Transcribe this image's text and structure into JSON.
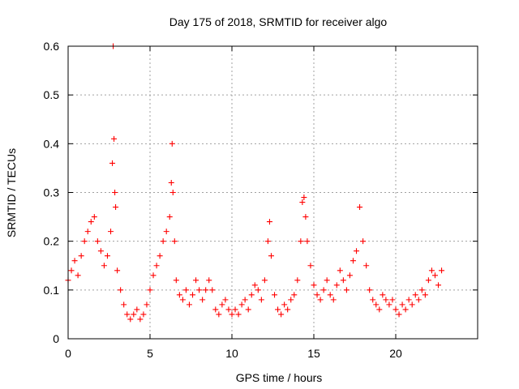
{
  "chart_data": {
    "type": "scatter",
    "title": "Day 175 of 2018, SRMTID for receiver algo",
    "xlabel": "GPS time / hours",
    "ylabel": "SRMTID / TECUs",
    "xlim": [
      0,
      25
    ],
    "ylim": [
      0,
      0.6
    ],
    "xticks": [
      0,
      5,
      10,
      15,
      20
    ],
    "xtick_labels": [
      "0",
      "5",
      "10",
      "15",
      "20"
    ],
    "yticks": [
      0,
      0.1,
      0.2,
      0.3,
      0.4,
      0.5,
      0.6
    ],
    "ytick_labels": [
      "0",
      "0.1",
      "0.2",
      "0.3",
      "0.4",
      "0.5",
      "0.6"
    ],
    "grid": true,
    "marker": "+",
    "point_color": "#ff0000",
    "series": [
      {
        "name": "SRMTID",
        "x": [
          0.0,
          0.2,
          0.4,
          0.6,
          0.8,
          1.0,
          1.2,
          1.4,
          1.6,
          1.8,
          2.0,
          2.2,
          2.4,
          2.6,
          2.7,
          2.75,
          2.8,
          2.85,
          2.9,
          3.0,
          3.2,
          3.4,
          3.6,
          3.8,
          4.0,
          4.2,
          4.4,
          4.6,
          4.8,
          5.0,
          5.2,
          5.4,
          5.6,
          5.8,
          6.0,
          6.2,
          6.3,
          6.35,
          6.4,
          6.5,
          6.6,
          6.8,
          7.0,
          7.2,
          7.4,
          7.6,
          7.8,
          8.0,
          8.2,
          8.4,
          8.6,
          8.8,
          9.0,
          9.2,
          9.4,
          9.6,
          9.8,
          10.0,
          10.2,
          10.4,
          10.6,
          10.8,
          11.0,
          11.2,
          11.4,
          11.6,
          11.8,
          12.0,
          12.2,
          12.3,
          12.4,
          12.6,
          12.8,
          13.0,
          13.2,
          13.4,
          13.6,
          13.8,
          14.0,
          14.2,
          14.3,
          14.4,
          14.5,
          14.6,
          14.8,
          15.0,
          15.2,
          15.4,
          15.6,
          15.8,
          16.0,
          16.2,
          16.4,
          16.6,
          16.8,
          17.0,
          17.2,
          17.4,
          17.6,
          17.8,
          18.0,
          18.2,
          18.4,
          18.6,
          18.8,
          19.0,
          19.2,
          19.4,
          19.6,
          19.8,
          20.0,
          20.2,
          20.4,
          20.6,
          20.8,
          21.0,
          21.2,
          21.4,
          21.6,
          21.8,
          22.0,
          22.2,
          22.4,
          22.6,
          22.8
        ],
        "y": [
          0.12,
          0.14,
          0.16,
          0.13,
          0.17,
          0.2,
          0.22,
          0.24,
          0.25,
          0.2,
          0.18,
          0.15,
          0.17,
          0.22,
          0.36,
          0.6,
          0.41,
          0.3,
          0.27,
          0.14,
          0.1,
          0.07,
          0.05,
          0.04,
          0.05,
          0.06,
          0.04,
          0.05,
          0.07,
          0.1,
          0.13,
          0.15,
          0.17,
          0.2,
          0.22,
          0.25,
          0.32,
          0.4,
          0.3,
          0.2,
          0.12,
          0.09,
          0.08,
          0.1,
          0.07,
          0.09,
          0.12,
          0.1,
          0.08,
          0.1,
          0.12,
          0.1,
          0.06,
          0.05,
          0.07,
          0.08,
          0.06,
          0.05,
          0.06,
          0.05,
          0.07,
          0.08,
          0.06,
          0.09,
          0.11,
          0.1,
          0.08,
          0.12,
          0.2,
          0.24,
          0.17,
          0.09,
          0.06,
          0.05,
          0.07,
          0.06,
          0.08,
          0.09,
          0.12,
          0.2,
          0.28,
          0.29,
          0.25,
          0.2,
          0.15,
          0.11,
          0.09,
          0.08,
          0.1,
          0.12,
          0.09,
          0.08,
          0.11,
          0.14,
          0.12,
          0.1,
          0.13,
          0.16,
          0.18,
          0.27,
          0.2,
          0.15,
          0.1,
          0.08,
          0.07,
          0.06,
          0.09,
          0.08,
          0.07,
          0.08,
          0.06,
          0.05,
          0.07,
          0.06,
          0.08,
          0.07,
          0.09,
          0.08,
          0.1,
          0.09,
          0.12,
          0.14,
          0.13,
          0.11,
          0.14
        ]
      }
    ]
  }
}
